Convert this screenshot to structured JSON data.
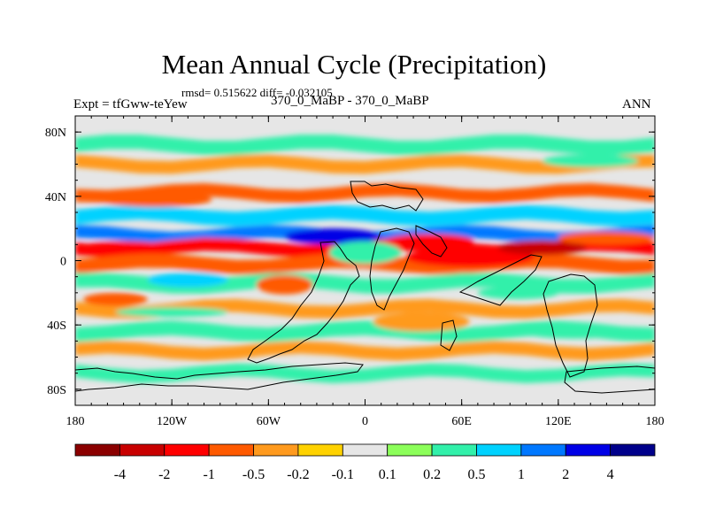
{
  "chart_data": {
    "type": "heatmap",
    "title": "Mean Annual Cycle (Precipitation)",
    "stats_line": "rmsd= 0.515622 diff= -0.032105",
    "left_label": "Expt = tfGww-teYew",
    "center_label": "370_0_MaBP - 370_0_MaBP",
    "right_label": "ANN",
    "x_axis": {
      "range": [
        -180,
        180
      ],
      "ticks": [
        {
          "value": -180,
          "label": "180"
        },
        {
          "value": -120,
          "label": "120W"
        },
        {
          "value": -60,
          "label": "60W"
        },
        {
          "value": 0,
          "label": "0"
        },
        {
          "value": 60,
          "label": "60E"
        },
        {
          "value": 120,
          "label": "120E"
        },
        {
          "value": 180,
          "label": "180"
        }
      ]
    },
    "y_axis": {
      "range": [
        -90,
        90
      ],
      "ticks": [
        {
          "value": 80,
          "label": "80N"
        },
        {
          "value": 40,
          "label": "40N"
        },
        {
          "value": 0,
          "label": "0"
        },
        {
          "value": -40,
          "label": "40S"
        },
        {
          "value": -80,
          "label": "80S"
        }
      ]
    },
    "colorbar": {
      "labels": [
        "-4",
        "-2",
        "-1",
        "-0.5",
        "-0.2",
        "-0.1",
        "0.1",
        "0.2",
        "0.5",
        "1",
        "2",
        "4"
      ],
      "colors": [
        "#8b0000",
        "#c80000",
        "#ff0000",
        "#ff5a00",
        "#ff9a1e",
        "#ffd200",
        "#e6e6e6",
        "#8cff5a",
        "#32f0aa",
        "#00d2ff",
        "#0078ff",
        "#0000e6",
        "#00008b"
      ]
    },
    "bands": [
      {
        "lat": 72,
        "height": 9,
        "value": 0.3
      },
      {
        "lat": 60,
        "height": 8,
        "value": -0.3
      },
      {
        "lat": 42,
        "height": 8,
        "value": -0.6
      },
      {
        "lat": 28,
        "height": 9,
        "value": 0.6
      },
      {
        "lat": 16,
        "height": 8,
        "value": 1.2
      },
      {
        "lat": 8,
        "height": 8,
        "value": -1.5
      },
      {
        "lat": -2,
        "height": 9,
        "value": -0.8
      },
      {
        "lat": -14,
        "height": 9,
        "value": 0.4
      },
      {
        "lat": -30,
        "height": 8,
        "value": -0.4
      },
      {
        "lat": -44,
        "height": 9,
        "value": 0.3
      },
      {
        "lat": -56,
        "height": 8,
        "value": -0.3
      },
      {
        "lat": -70,
        "height": 8,
        "value": 0.2
      }
    ],
    "blobs": [
      {
        "lon": -20,
        "lat": 15,
        "w": 60,
        "h": 10,
        "value": 2.0
      },
      {
        "lon": -130,
        "lat": 38,
        "w": 70,
        "h": 9,
        "value": -0.7
      },
      {
        "lon": 0,
        "lat": 5,
        "w": 45,
        "h": 14,
        "value": 0.4
      },
      {
        "lon": 65,
        "lat": 2,
        "w": 80,
        "h": 12,
        "value": -2.0
      },
      {
        "lon": 110,
        "lat": 8,
        "w": 55,
        "h": 9,
        "value": -2.5
      },
      {
        "lon": 40,
        "lat": 12,
        "w": 55,
        "h": 9,
        "value": -1.2
      },
      {
        "lon": 150,
        "lat": 14,
        "w": 60,
        "h": 8,
        "value": -1.0
      },
      {
        "lon": -150,
        "lat": 8,
        "w": 60,
        "h": 8,
        "value": -1.2
      },
      {
        "lon": -110,
        "lat": -12,
        "w": 50,
        "h": 9,
        "value": 0.7
      },
      {
        "lon": -50,
        "lat": -15,
        "w": 35,
        "h": 12,
        "value": -1.0
      },
      {
        "lon": -155,
        "lat": -24,
        "w": 40,
        "h": 8,
        "value": -0.8
      },
      {
        "lon": -120,
        "lat": -32,
        "w": 70,
        "h": 6,
        "value": 0.3
      },
      {
        "lon": 95,
        "lat": -20,
        "w": 50,
        "h": 8,
        "value": 0.3
      },
      {
        "lon": 130,
        "lat": -45,
        "w": 60,
        "h": 7,
        "value": 0.4
      },
      {
        "lon": 35,
        "lat": -38,
        "w": 60,
        "h": 12,
        "value": -0.5
      },
      {
        "lon": -25,
        "lat": -55,
        "w": 50,
        "h": 6,
        "value": -0.3
      },
      {
        "lon": 140,
        "lat": 62,
        "w": 60,
        "h": 8,
        "value": 0.4
      }
    ]
  }
}
